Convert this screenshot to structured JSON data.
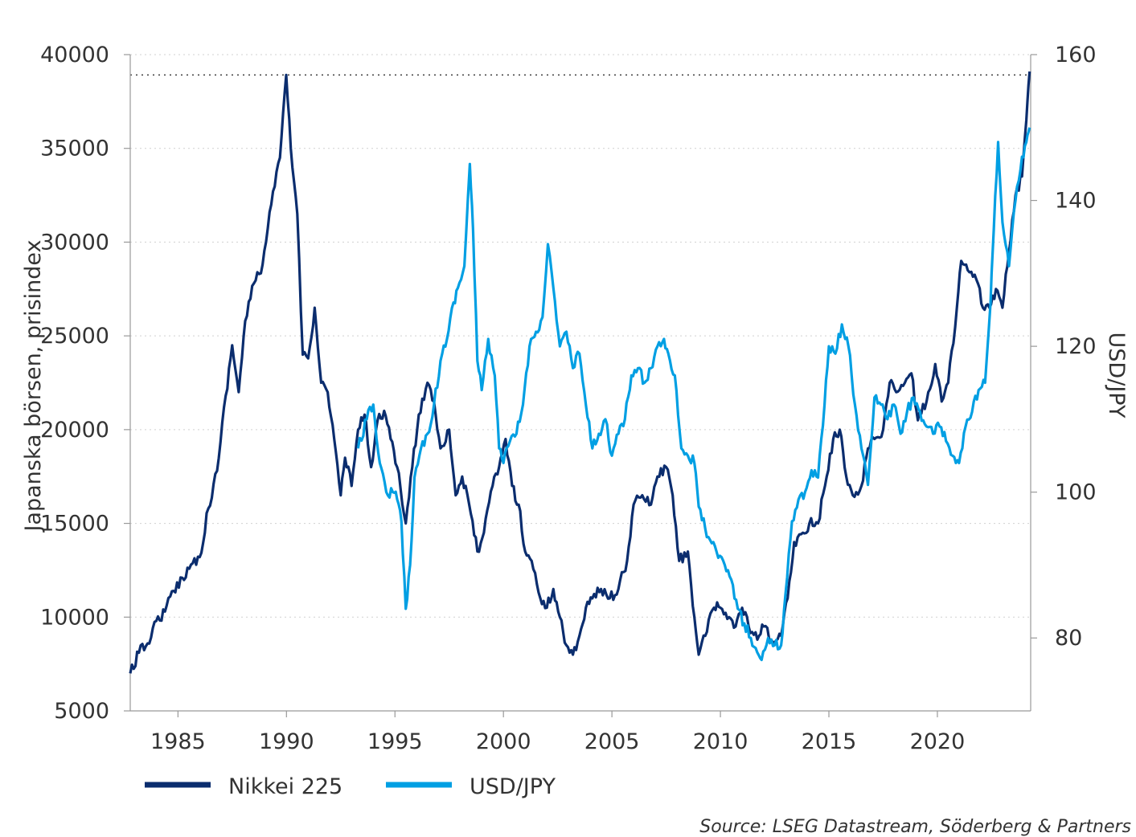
{
  "chart_data": {
    "type": "line",
    "title": "",
    "ylabel": "Japanska börsen, prisindex",
    "y2label": "USD/JPY",
    "xlim": [
      1982.8,
      2024.3
    ],
    "ylim": [
      5000,
      40000
    ],
    "y2lim": [
      70,
      160
    ],
    "x_ticks": [
      "1985",
      "1990",
      "1995",
      "2000",
      "2005",
      "2010",
      "2015",
      "2020"
    ],
    "y_ticks": [
      "5000",
      "10000",
      "15000",
      "20000",
      "25000",
      "30000",
      "35000",
      "40000"
    ],
    "y2_ticks": [
      "80",
      "100",
      "120",
      "140",
      "160"
    ],
    "reference_line": {
      "axis": "left",
      "value": 38915,
      "style": "dotted"
    },
    "grid": "horizontal dotted",
    "legend_position": "bottom-left",
    "series": [
      {
        "name": "Nikkei 225",
        "axis": "left",
        "color": "#0b2d6e",
        "x": [
          1982.8,
          1983.2,
          1983.6,
          1984.0,
          1984.4,
          1984.8,
          1985.2,
          1985.6,
          1986.0,
          1986.4,
          1986.8,
          1987.2,
          1987.5,
          1987.8,
          1988.1,
          1988.5,
          1988.9,
          1989.3,
          1989.7,
          1989.99,
          1990.2,
          1990.5,
          1990.75,
          1991.0,
          1991.3,
          1991.6,
          1991.9,
          1992.2,
          1992.5,
          1992.7,
          1993.0,
          1993.3,
          1993.6,
          1993.9,
          1994.2,
          1994.5,
          1994.8,
          1995.1,
          1995.5,
          1995.8,
          1996.1,
          1996.5,
          1996.8,
          1997.1,
          1997.5,
          1997.8,
          1998.1,
          1998.5,
          1998.8,
          1999.1,
          1999.5,
          1999.8,
          2000.1,
          2000.4,
          2000.7,
          2001.0,
          2001.3,
          2001.7,
          2002.0,
          2002.3,
          2002.6,
          2002.9,
          2003.2,
          2003.5,
          2003.8,
          2004.1,
          2004.5,
          2004.9,
          2005.3,
          2005.7,
          2006.0,
          2006.4,
          2006.8,
          2007.1,
          2007.5,
          2007.8,
          2008.1,
          2008.5,
          2008.8,
          2009.0,
          2009.3,
          2009.7,
          2010.0,
          2010.4,
          2010.7,
          2011.0,
          2011.3,
          2011.7,
          2012.0,
          2012.4,
          2012.8,
          2013.1,
          2013.4,
          2013.8,
          2014.1,
          2014.5,
          2014.9,
          2015.2,
          2015.5,
          2015.8,
          2016.1,
          2016.5,
          2016.8,
          2017.1,
          2017.5,
          2017.8,
          2018.1,
          2018.5,
          2018.8,
          2019.1,
          2019.5,
          2019.9,
          2020.2,
          2020.5,
          2020.9,
          2021.1,
          2021.4,
          2021.8,
          2022.1,
          2022.4,
          2022.7,
          2023.0,
          2023.3,
          2023.6,
          2023.9,
          2024.1,
          2024.25
        ],
        "y": [
          7000,
          8100,
          8600,
          9800,
          10300,
          11400,
          12100,
          12800,
          13200,
          15800,
          17800,
          21800,
          24500,
          22000,
          25800,
          27800,
          28800,
          32000,
          34500,
          38915,
          35000,
          31500,
          24000,
          23800,
          26500,
          22500,
          22000,
          19500,
          16500,
          18500,
          17000,
          20000,
          20800,
          18000,
          20500,
          21000,
          19500,
          18000,
          15000,
          18000,
          20800,
          22500,
          21500,
          19000,
          20000,
          16500,
          17500,
          15500,
          13500,
          14500,
          17000,
          18000,
          19500,
          17000,
          16000,
          13500,
          13000,
          11000,
          10500,
          11500,
          10000,
          8500,
          8000,
          9000,
          10500,
          11000,
          11500,
          11000,
          11500,
          13000,
          16000,
          16500,
          16000,
          17500,
          18000,
          16500,
          13000,
          13500,
          10000,
          8000,
          9000,
          10500,
          10500,
          10000,
          9500,
          10500,
          9500,
          8800,
          9500,
          8700,
          9000,
          11000,
          14000,
          14500,
          15000,
          15000,
          17500,
          19500,
          20000,
          17500,
          16500,
          17000,
          19000,
          19500,
          20000,
          22500,
          22000,
          22500,
          23000,
          20500,
          21500,
          23500,
          21500,
          22500,
          26500,
          29000,
          28500,
          28000,
          26500,
          26500,
          27500,
          26500,
          29500,
          32500,
          33500,
          36500,
          39100
        ]
      },
      {
        "name": "USD/JPY",
        "axis": "right",
        "color": "#009fe3",
        "x": [
          1993.3,
          1993.7,
          1994.0,
          1994.3,
          1994.6,
          1994.9,
          1995.1,
          1995.3,
          1995.5,
          1995.7,
          1995.9,
          1996.2,
          1996.5,
          1996.8,
          1997.1,
          1997.4,
          1997.7,
          1997.9,
          1998.2,
          1998.45,
          1998.6,
          1998.8,
          1999.0,
          1999.3,
          1999.6,
          1999.8,
          2000.0,
          2000.3,
          2000.6,
          2000.9,
          2001.2,
          2001.5,
          2001.8,
          2002.05,
          2002.3,
          2002.6,
          2002.9,
          2003.2,
          2003.5,
          2003.8,
          2004.1,
          2004.4,
          2004.7,
          2005.0,
          2005.3,
          2005.6,
          2005.9,
          2006.2,
          2006.5,
          2006.8,
          2007.1,
          2007.4,
          2007.6,
          2007.9,
          2008.2,
          2008.5,
          2008.8,
          2009.0,
          2009.3,
          2009.6,
          2009.9,
          2010.2,
          2010.5,
          2010.8,
          2011.1,
          2011.4,
          2011.7,
          2011.9,
          2012.2,
          2012.5,
          2012.8,
          2013.0,
          2013.3,
          2013.6,
          2013.9,
          2014.2,
          2014.5,
          2014.8,
          2015.0,
          2015.3,
          2015.6,
          2015.9,
          2016.2,
          2016.5,
          2016.8,
          2017.1,
          2017.4,
          2017.7,
          2018.0,
          2018.3,
          2018.6,
          2018.9,
          2019.2,
          2019.5,
          2019.8,
          2020.1,
          2020.4,
          2020.7,
          2021.0,
          2021.3,
          2021.6,
          2021.9,
          2022.2,
          2022.45,
          2022.6,
          2022.8,
          2023.0,
          2023.3,
          2023.6,
          2023.9,
          2024.1,
          2024.25
        ],
        "y": [
          106,
          110,
          112,
          104,
          100,
          100,
          99,
          96,
          84,
          90,
          102,
          106,
          108,
          112,
          118,
          121,
          126,
          128,
          131,
          145,
          136,
          118,
          114,
          121,
          116,
          106,
          104,
          107,
          108,
          112,
          120,
          122,
          124,
          134,
          128,
          120,
          122,
          117,
          119,
          112,
          106,
          108,
          110,
          105,
          108,
          110,
          116,
          117,
          115,
          117,
          120,
          121,
          119,
          116,
          106,
          105,
          104,
          98,
          95,
          93,
          91,
          90,
          88,
          84,
          82,
          80,
          78,
          77,
          80,
          79,
          79,
          86,
          96,
          99,
          100,
          103,
          102,
          112,
          120,
          119,
          123,
          120,
          112,
          106,
          101,
          113,
          112,
          110,
          112,
          108,
          111,
          113,
          111,
          109,
          108,
          109,
          107,
          105,
          104,
          109,
          111,
          114,
          115,
          126,
          136,
          148,
          137,
          131,
          140,
          146,
          148,
          150
        ]
      }
    ]
  },
  "legend": {
    "items": [
      {
        "label": "Nikkei 225",
        "color": "#0b2d6e"
      },
      {
        "label": "USD/JPY",
        "color": "#009fe3"
      }
    ]
  },
  "source": "Source: LSEG Datastream, Söderberg & Partners"
}
